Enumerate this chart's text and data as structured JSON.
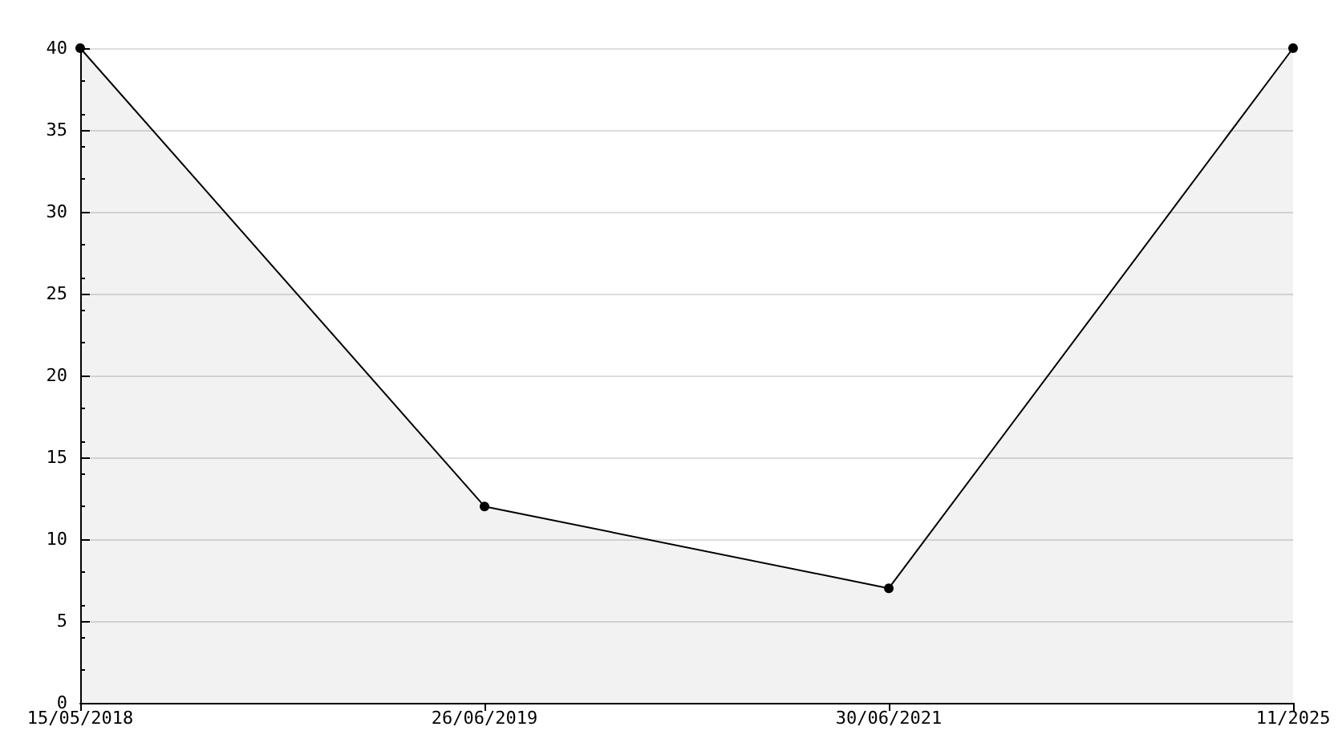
{
  "chart_data": {
    "type": "area",
    "categories": [
      "15/05/2018",
      "26/06/2019",
      "30/06/2021",
      "11/2025"
    ],
    "series": [
      {
        "color": "#000000",
        "values": [
          40,
          12,
          7,
          40
        ]
      }
    ],
    "ylim": [
      0,
      40
    ],
    "yticks": [
      0,
      5,
      10,
      15,
      20,
      25,
      30,
      35,
      40
    ],
    "grid": "y",
    "marker": "circle",
    "line_style": "solid"
  }
}
